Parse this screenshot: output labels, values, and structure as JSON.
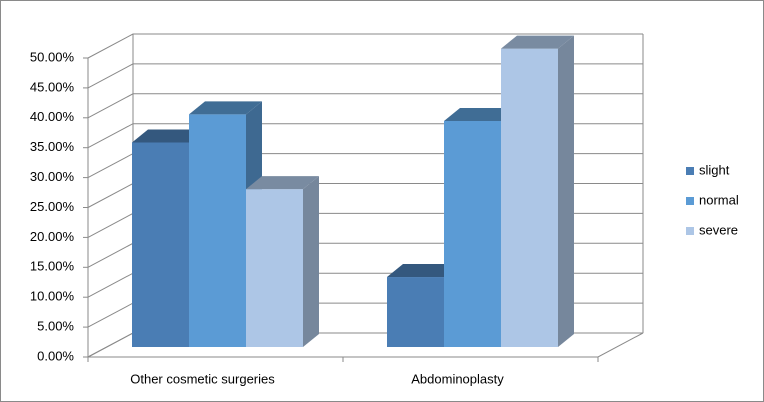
{
  "chart_data": {
    "type": "bar3d",
    "categories": [
      "Other cosmetic surgeries",
      "Abdominoplasty"
    ],
    "series": [
      {
        "name": "slight",
        "color": "#4a7db4",
        "values": [
          34.2,
          11.7
        ]
      },
      {
        "name": "normal",
        "color": "#5b9bd5",
        "values": [
          38.9,
          37.8
        ]
      },
      {
        "name": "severe",
        "color": "#adc6e6",
        "values": [
          26.4,
          49.9
        ]
      }
    ],
    "ylim": [
      0,
      50
    ],
    "yticks": [
      {
        "value": 0,
        "label": "0.00%"
      },
      {
        "value": 5,
        "label": "5.00%"
      },
      {
        "value": 10,
        "label": "10.00%"
      },
      {
        "value": 15,
        "label": "15.00%"
      },
      {
        "value": 20,
        "label": "20.00%"
      },
      {
        "value": 25,
        "label": "25.00%"
      },
      {
        "value": 30,
        "label": "30.00%"
      },
      {
        "value": 35,
        "label": "35.00%"
      },
      {
        "value": 40,
        "label": "40.00%"
      },
      {
        "value": 45,
        "label": "45.00%"
      },
      {
        "value": 50,
        "label": "50.00%"
      }
    ],
    "grid": true,
    "legend": "right"
  }
}
